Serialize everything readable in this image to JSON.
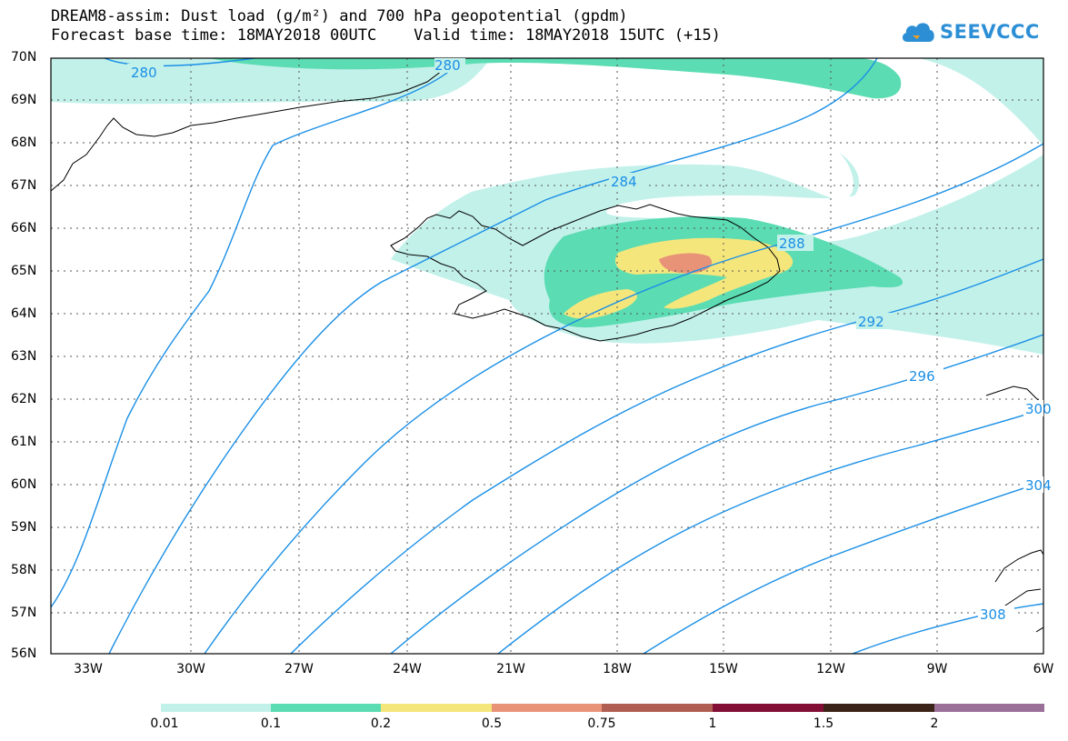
{
  "header": {
    "title_line1": "DREAM8-assim: Dust load (g/m²) and 700 hPa geopotential (gpdm)",
    "title_line2": "Forecast base time: 18MAY2018 00UTC    Valid time: 18MAY2018 15UTC (+15)"
  },
  "logo": {
    "text": "SEEVCCC",
    "icon": "cloud-icon",
    "color": "#2c8fd6"
  },
  "map": {
    "lat_labels": [
      "70N",
      "69N",
      "68N",
      "67N",
      "66N",
      "65N",
      "64N",
      "63N",
      "62N",
      "61N",
      "60N",
      "59N",
      "58N",
      "57N",
      "56N"
    ],
    "lon_labels": [
      "33W",
      "30W",
      "27W",
      "24W",
      "21W",
      "18W",
      "15W",
      "12W",
      "9W",
      "6W"
    ],
    "contour_labels": [
      "280",
      "280",
      "284",
      "288",
      "292",
      "296",
      "300",
      "304",
      "308"
    ],
    "contour_color": "#1a8fe6",
    "coastline_color": "#000000"
  },
  "legend": {
    "labels": [
      "0.01",
      "0.1",
      "0.2",
      "0.5",
      "0.75",
      "1",
      "1.5",
      "2"
    ],
    "colors": [
      "#c2f1ea",
      "#5bdcb2",
      "#f5e67c",
      "#e89378",
      "#b15e52",
      "#830e35",
      "#3c2318",
      "#9a7099"
    ]
  }
}
